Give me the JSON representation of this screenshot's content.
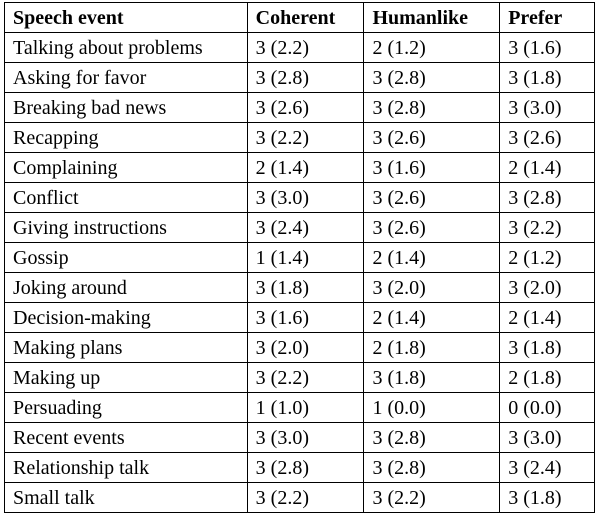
{
  "table": {
    "headers": [
      "Speech event",
      "Coherent",
      "Humanlike",
      "Prefer"
    ],
    "rows": [
      [
        "Talking about problems",
        "3 (2.2)",
        "2 (1.2)",
        "3 (1.6)"
      ],
      [
        "Asking for favor",
        "3 (2.8)",
        "3 (2.8)",
        "3 (1.8)"
      ],
      [
        "Breaking bad news",
        "3 (2.6)",
        "3 (2.8)",
        "3 (3.0)"
      ],
      [
        "Recapping",
        "3 (2.2)",
        "3 (2.6)",
        "3 (2.6)"
      ],
      [
        "Complaining",
        "2 (1.4)",
        "3 (1.6)",
        "2 (1.4)"
      ],
      [
        "Conflict",
        "3 (3.0)",
        "3 (2.6)",
        "3 (2.8)"
      ],
      [
        "Giving instructions",
        "3 (2.4)",
        "3 (2.6)",
        "3 (2.2)"
      ],
      [
        "Gossip",
        "1 (1.4)",
        "2 (1.4)",
        "2 (1.2)"
      ],
      [
        "Joking around",
        "3 (1.8)",
        "3 (2.0)",
        "3 (2.0)"
      ],
      [
        "Decision-making",
        "3 (1.6)",
        "2 (1.4)",
        "2 (1.4)"
      ],
      [
        "Making plans",
        "3 (2.0)",
        "2 (1.8)",
        "3 (1.8)"
      ],
      [
        "Making up",
        "3 (2.2)",
        "3 (1.8)",
        "2 (1.8)"
      ],
      [
        "Persuading",
        "1 (1.0)",
        "1 (0.0)",
        "0 (0.0)"
      ],
      [
        "Recent events",
        "3 (3.0)",
        "3 (2.8)",
        "3 (3.0)"
      ],
      [
        "Relationship talk",
        "3 (2.8)",
        "3 (2.8)",
        "3 (2.4)"
      ],
      [
        "Small talk",
        "3 (2.2)",
        "3 (2.2)",
        "3 (1.8)"
      ]
    ]
  }
}
